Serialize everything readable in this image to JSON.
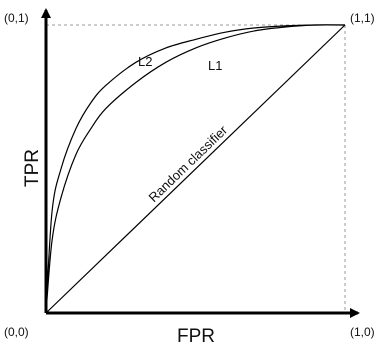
{
  "chart_data": {
    "type": "line",
    "title": "",
    "xlabel": "FPR",
    "ylabel": "TPR",
    "xlim": [
      0,
      1
    ],
    "ylim": [
      0,
      1
    ],
    "corner_labels": {
      "origin": "(0,0)",
      "top_left": "(0,1)",
      "top_right": "(1,1)",
      "bottom_right": "(1,0)"
    },
    "series": [
      {
        "name": "L2",
        "x": [
          0,
          0.02,
          0.05,
          0.1,
          0.15,
          0.2,
          0.3,
          0.4,
          0.5,
          0.6,
          0.7,
          0.8,
          0.9,
          1
        ],
        "y": [
          0,
          0.35,
          0.5,
          0.64,
          0.73,
          0.79,
          0.87,
          0.92,
          0.95,
          0.975,
          0.99,
          0.997,
          1,
          1
        ]
      },
      {
        "name": "L1",
        "x": [
          0,
          0.02,
          0.05,
          0.1,
          0.15,
          0.2,
          0.3,
          0.4,
          0.5,
          0.6,
          0.7,
          0.8,
          0.9,
          1
        ],
        "y": [
          0,
          0.25,
          0.4,
          0.55,
          0.64,
          0.71,
          0.8,
          0.87,
          0.92,
          0.955,
          0.98,
          0.993,
          1,
          1
        ]
      },
      {
        "name": "Random classifier",
        "x": [
          0,
          1
        ],
        "y": [
          0,
          1
        ]
      }
    ]
  }
}
